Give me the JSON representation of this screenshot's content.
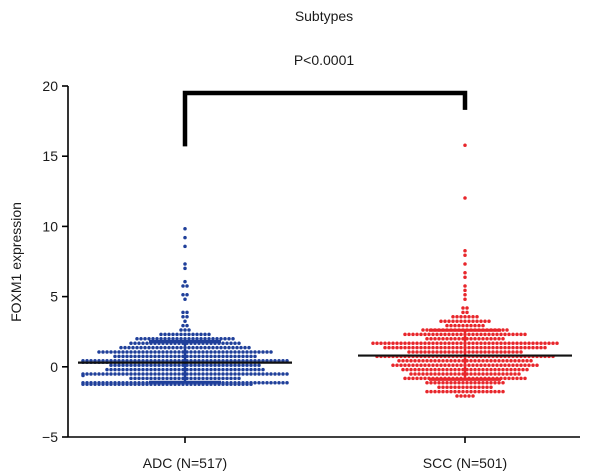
{
  "chart_data": {
    "type": "scatter",
    "title": "Subtypes",
    "ylabel": "FOXM1 expression",
    "xlabel": "",
    "ylim": [
      -5,
      20
    ],
    "yticks": [
      -5,
      0,
      5,
      10,
      15,
      20
    ],
    "categories": [
      "ADC (N=517)",
      "SCC (N=501)"
    ],
    "grid": false,
    "legend": "none",
    "annotation": {
      "text": "P<0.0001",
      "between": [
        "ADC (N=517)",
        "SCC (N=501)"
      ],
      "bracket_left_bottom": 15.7,
      "bracket_right_bottom": 18.3,
      "bracket_top": 19.5
    },
    "series": [
      {
        "category": "ADC (N=517)",
        "color": "#1f3f9a",
        "n": 517,
        "mean": 0.3,
        "sd_upper": 1.8,
        "sd_lower": -1.1,
        "range": [
          -1.2,
          9.8
        ],
        "outliers": [
          9.8,
          9.3,
          8.6,
          7.2,
          6.9,
          6.1,
          5.9,
          5.7,
          5.2,
          5.0,
          4.7
        ]
      },
      {
        "category": "SCC (N=501)",
        "color": "#e8262b",
        "n": 501,
        "mean": 0.8,
        "sd_upper": 2.6,
        "sd_lower": -0.9,
        "range": [
          -2.0,
          15.7
        ],
        "outliers": [
          15.7,
          11.9,
          8.2,
          7.9,
          7.2,
          6.7,
          6.3,
          5.9,
          5.5,
          5.2,
          4.9
        ]
      }
    ]
  }
}
